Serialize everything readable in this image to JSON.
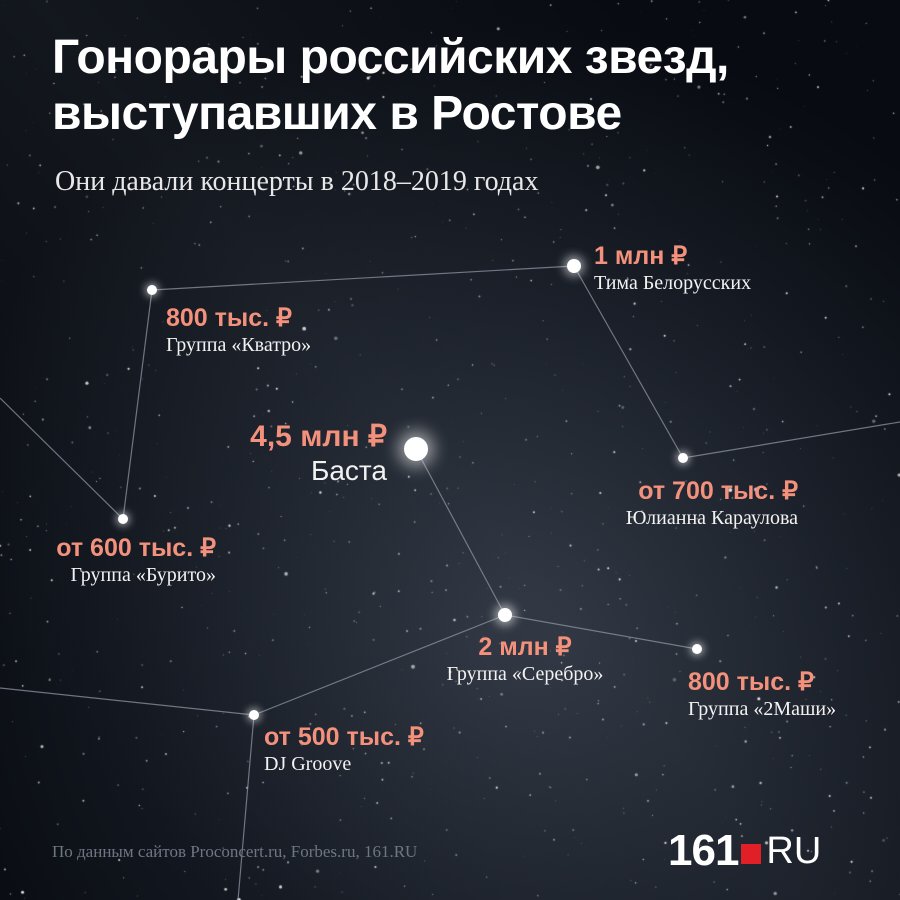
{
  "title": "Гонорары российских звезд, выступавших в Ростове",
  "subtitle": "Они давали концерты в 2018–2019 годах",
  "source": "По данным сайтов Proconcert.ru, Forbes.ru, 161.RU",
  "logo": {
    "number": "161",
    "suffix": "RU",
    "accent_color": "#e11f26"
  },
  "colors": {
    "background": "#0b0f16",
    "fee": "#f3917c",
    "name": "#f2f2f2",
    "line": "#8e96a3"
  },
  "chart_data": {
    "type": "scatter",
    "title": "Гонорары российских звезд, выступавших в Ростове",
    "unit": "₽",
    "points": [
      {
        "name": "Тима Белорусских",
        "fee_label": "1 млн ₽",
        "value": 1000000
      },
      {
        "name": "Группа «Кватро»",
        "fee_label": "800 тыс. ₽",
        "value": 800000
      },
      {
        "name": "Баста",
        "fee_label": "4,5 млн ₽",
        "value": 4500000
      },
      {
        "name": "Юлианна Караулова",
        "fee_label": "от 700 тыс. ₽",
        "value": 700000
      },
      {
        "name": "Группа «Бурито»",
        "fee_label": "от 600 тыс. ₽",
        "value": 600000
      },
      {
        "name": "Группа «Серебро»",
        "fee_label": "2 млн ₽",
        "value": 2000000
      },
      {
        "name": "Группа «2Маши»",
        "fee_label": "800 тыс. ₽",
        "value": 800000
      },
      {
        "name": "DJ Groove",
        "fee_label": "от 500 тыс. ₽",
        "value": 500000
      }
    ]
  }
}
